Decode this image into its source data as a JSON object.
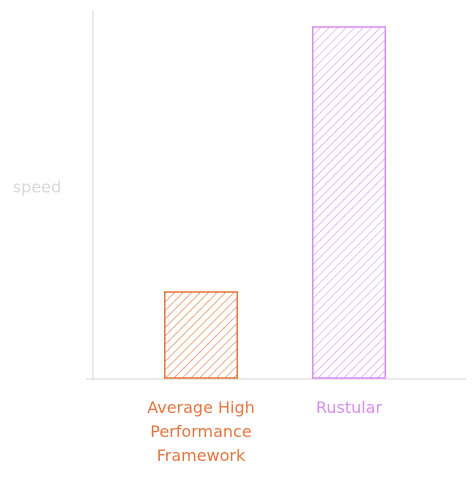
{
  "chart_data": {
    "type": "bar",
    "y_label": "speed",
    "categories": [
      "Average High Performance Framework",
      "Rustular"
    ],
    "values": [
      24.5,
      100
    ],
    "colors": [
      "#e8743b",
      "#d98cf2"
    ],
    "ylim": [
      0,
      100
    ],
    "grid": false
  }
}
